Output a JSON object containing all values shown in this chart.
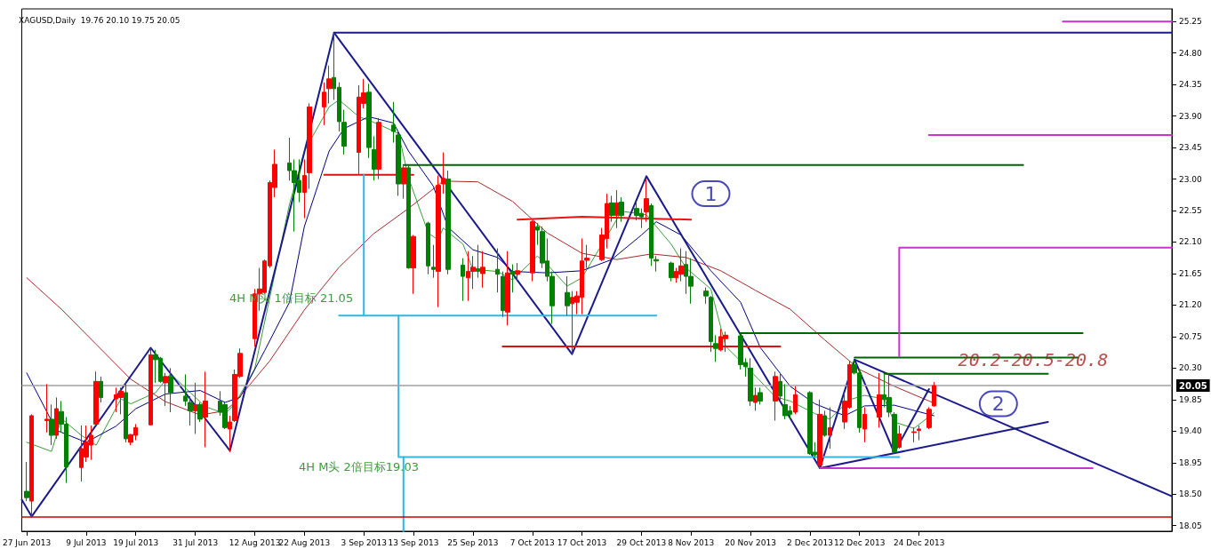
{
  "chart_data": {
    "type": "candlestick",
    "title": "XAGUSD,Daily  19.76 20.10 19.75 20.05",
    "xlim": [
      "2013-06-26",
      "2014-02-13"
    ],
    "xticks": [
      {
        "value": "2013-06-27",
        "label": "27 Jun 2013"
      },
      {
        "value": "2013-07-09",
        "label": "9 Jul 2013"
      },
      {
        "value": "2013-07-19",
        "label": "19 Jul 2013"
      },
      {
        "value": "2013-07-31",
        "label": "31 Jul 2013"
      },
      {
        "value": "2013-08-12",
        "label": "12 Aug 2013"
      },
      {
        "value": "2013-08-22",
        "label": "22 Aug 2013"
      },
      {
        "value": "2013-09-03",
        "label": "3 Sep 2013"
      },
      {
        "value": "2013-09-13",
        "label": "13 Sep 2013"
      },
      {
        "value": "2013-09-25",
        "label": "25 Sep 2013"
      },
      {
        "value": "2013-10-07",
        "label": "7 Oct 2013"
      },
      {
        "value": "2013-10-17",
        "label": "17 Oct 2013"
      },
      {
        "value": "2013-10-29",
        "label": "29 Oct 2013"
      },
      {
        "value": "2013-11-08",
        "label": "8 Nov 2013"
      },
      {
        "value": "2013-11-20",
        "label": "20 Nov 2013"
      },
      {
        "value": "2013-12-02",
        "label": "2 Dec 2013"
      },
      {
        "value": "2013-12-12",
        "label": "12 Dec 2013"
      },
      {
        "value": "2013-12-24",
        "label": "24 Dec 2013"
      }
    ],
    "ylim": [
      17.97,
      25.43
    ],
    "yticks": [
      25.25,
      {
        "value": 24.8,
        "label": "24.80"
      },
      24.35,
      {
        "value": 23.9,
        "label": "23.90"
      },
      23.45,
      {
        "value": 23,
        "label": "23.00"
      },
      22.55,
      {
        "value": 22.1,
        "label": "22.10"
      },
      21.65,
      {
        "value": 21.2,
        "label": "21.20"
      },
      20.75,
      {
        "value": 20.3,
        "label": "20.30"
      },
      19.85,
      {
        "value": 19.4,
        "label": "19.40"
      },
      18.95,
      {
        "value": 18.5,
        "label": "18.50"
      },
      18.05
    ],
    "x": [
      "2013-06-27",
      "2013-06-28",
      "2013-07-01",
      "2013-07-02",
      "2013-07-03",
      "2013-07-04",
      "2013-07-05",
      "2013-07-08",
      "2013-07-09",
      "2013-07-10",
      "2013-07-11",
      "2013-07-12",
      "2013-07-15",
      "2013-07-16",
      "2013-07-17",
      "2013-07-18",
      "2013-07-19",
      "2013-07-22",
      "2013-07-23",
      "2013-07-24",
      "2013-07-25",
      "2013-07-26",
      "2013-07-29",
      "2013-07-30",
      "2013-07-31",
      "2013-08-01",
      "2013-08-02",
      "2013-08-05",
      "2013-08-06",
      "2013-08-07",
      "2013-08-08",
      "2013-08-09",
      "2013-08-12",
      "2013-08-13",
      "2013-08-14",
      "2013-08-15",
      "2013-08-16",
      "2013-08-19",
      "2013-08-20",
      "2013-08-21",
      "2013-08-22",
      "2013-08-23",
      "2013-08-26",
      "2013-08-27",
      "2013-08-28",
      "2013-08-29",
      "2013-08-30",
      "2013-09-02",
      "2013-09-03",
      "2013-09-04",
      "2013-09-05",
      "2013-09-06",
      "2013-09-09",
      "2013-09-10",
      "2013-09-11",
      "2013-09-12",
      "2013-09-13",
      "2013-09-16",
      "2013-09-17",
      "2013-09-18",
      "2013-09-19",
      "2013-09-20",
      "2013-09-23",
      "2013-09-24",
      "2013-09-25",
      "2013-09-26",
      "2013-09-27",
      "2013-09-30",
      "2013-10-01",
      "2013-10-02",
      "2013-10-03",
      "2013-10-04",
      "2013-10-07",
      "2013-10-08",
      "2013-10-09",
      "2013-10-10",
      "2013-10-11",
      "2013-10-14",
      "2013-10-15",
      "2013-10-16",
      "2013-10-17",
      "2013-10-18",
      "2013-10-21",
      "2013-10-22",
      "2013-10-23",
      "2013-10-24",
      "2013-10-25",
      "2013-10-28",
      "2013-10-29",
      "2013-10-30",
      "2013-10-31",
      "2013-11-01",
      "2013-11-04",
      "2013-11-05",
      "2013-11-06",
      "2013-11-07",
      "2013-11-08",
      "2013-11-11",
      "2013-11-12",
      "2013-11-13",
      "2013-11-14",
      "2013-11-15",
      "2013-11-18",
      "2013-11-19",
      "2013-11-20",
      "2013-11-21",
      "2013-11-22",
      "2013-11-25",
      "2013-11-26",
      "2013-11-27",
      "2013-11-28",
      "2013-11-29",
      "2013-12-02",
      "2013-12-03",
      "2013-12-04",
      "2013-12-05",
      "2013-12-06",
      "2013-12-09",
      "2013-12-10",
      "2013-12-11",
      "2013-12-12",
      "2013-12-13",
      "2013-12-16",
      "2013-12-17",
      "2013-12-18",
      "2013-12-19",
      "2013-12-20",
      "2013-12-23",
      "2013-12-24",
      "2013-12-26",
      "2013-12-27"
    ],
    "ohlc": [
      [
        18.54,
        18.96,
        18.4,
        18.45
      ],
      [
        18.4,
        19.64,
        18.16,
        19.62
      ],
      [
        19.55,
        20.07,
        19.38,
        19.57
      ],
      [
        19.57,
        19.78,
        19.2,
        19.34
      ],
      [
        19.34,
        19.88,
        19.29,
        19.72
      ],
      [
        19.68,
        19.83,
        19.38,
        19.5
      ],
      [
        19.5,
        19.6,
        18.66,
        18.89
      ],
      [
        18.88,
        19.48,
        18.68,
        19.15
      ],
      [
        19.03,
        19.48,
        18.96,
        19.24
      ],
      [
        19.2,
        19.48,
        18.99,
        19.34
      ],
      [
        19.5,
        20.25,
        19.48,
        20.11
      ],
      [
        20.11,
        20.18,
        19.81,
        19.88
      ],
      [
        19.86,
        20.02,
        19.67,
        19.92
      ],
      [
        19.88,
        20.02,
        19.64,
        19.97
      ],
      [
        19.95,
        20.09,
        19.24,
        19.29
      ],
      [
        19.24,
        19.36,
        19.2,
        19.35
      ],
      [
        19.34,
        19.5,
        19.27,
        19.45
      ],
      [
        19.49,
        20.58,
        19.48,
        20.49
      ],
      [
        20.49,
        20.56,
        20.09,
        20.42
      ],
      [
        20.44,
        20.46,
        20.09,
        20.11
      ],
      [
        20.09,
        20.23,
        19.76,
        20.18
      ],
      [
        20.18,
        20.3,
        19.67,
        19.95
      ],
      [
        19.9,
        20.21,
        19.76,
        19.83
      ],
      [
        19.81,
        19.9,
        19.48,
        19.69
      ],
      [
        19.69,
        20.09,
        19.36,
        19.78
      ],
      [
        19.78,
        19.81,
        19.53,
        19.57
      ],
      [
        19.6,
        20.25,
        19.17,
        19.83
      ],
      [
        19.83,
        19.97,
        19.62,
        19.67
      ],
      [
        19.78,
        19.81,
        19.43,
        19.45
      ],
      [
        19.43,
        19.62,
        19.1,
        19.53
      ],
      [
        19.55,
        20.28,
        19.53,
        20.21
      ],
      [
        20.18,
        20.58,
        20.16,
        20.51
      ],
      [
        20.72,
        21.43,
        20.61,
        21.36
      ],
      [
        21.36,
        21.73,
        21.12,
        21.43
      ],
      [
        21.38,
        21.85,
        21.36,
        21.83
      ],
      [
        21.76,
        22.98,
        21.73,
        22.95
      ],
      [
        22.88,
        23.42,
        22.74,
        23.21
      ],
      [
        23.23,
        23.59,
        22.98,
        23.12
      ],
      [
        23.12,
        23.28,
        22.25,
        22.95
      ],
      [
        22.98,
        23.28,
        22.67,
        22.81
      ],
      [
        22.81,
        23.28,
        22.44,
        23.05
      ],
      [
        23.09,
        24.08,
        22.86,
        24.03
      ],
      [
        24.03,
        24.38,
        23.77,
        24.24
      ],
      [
        24.29,
        24.62,
        24.08,
        24.43
      ],
      [
        24.45,
        25.09,
        24.13,
        24.29
      ],
      [
        24.31,
        24.38,
        23.68,
        23.82
      ],
      [
        23.81,
        23.99,
        23.35,
        23.47
      ],
      [
        23.38,
        24.34,
        23.07,
        24.17
      ],
      [
        24.08,
        24.43,
        24.01,
        24.23
      ],
      [
        24.24,
        24.36,
        23.3,
        23.45
      ],
      [
        23.42,
        23.61,
        22.98,
        23.14
      ],
      [
        23.14,
        23.87,
        23.0,
        23.81
      ],
      [
        23.77,
        24.1,
        23.52,
        23.68
      ],
      [
        23.63,
        23.7,
        22.76,
        22.93
      ],
      [
        22.93,
        23.19,
        22.72,
        23.16
      ],
      [
        23.16,
        23.19,
        21.72,
        21.73
      ],
      [
        21.73,
        22.2,
        21.36,
        22.18
      ],
      [
        22.37,
        22.39,
        21.64,
        21.76
      ],
      [
        21.74,
        22.06,
        21.59,
        21.71
      ],
      [
        21.68,
        23.05,
        21.17,
        22.91
      ],
      [
        22.93,
        23.38,
        22.79,
        23.01
      ],
      [
        23.0,
        23.12,
        21.64,
        21.71
      ],
      [
        21.77,
        21.87,
        21.26,
        21.61
      ],
      [
        21.59,
        21.97,
        21.26,
        21.68
      ],
      [
        21.68,
        21.9,
        21.43,
        21.74
      ],
      [
        21.72,
        22.06,
        21.59,
        21.68
      ],
      [
        21.65,
        21.97,
        21.45,
        21.74
      ],
      [
        21.71,
        22.01,
        21.38,
        21.64
      ],
      [
        21.61,
        21.68,
        21.03,
        21.12
      ],
      [
        21.1,
        21.97,
        20.91,
        21.66
      ],
      [
        21.68,
        21.78,
        21.38,
        21.64
      ],
      [
        21.64,
        21.8,
        21.54,
        21.69
      ],
      [
        21.66,
        22.41,
        21.54,
        22.39
      ],
      [
        22.32,
        22.37,
        22.06,
        22.27
      ],
      [
        22.25,
        22.32,
        21.73,
        21.8
      ],
      [
        21.83,
        22.15,
        21.54,
        21.61
      ],
      [
        21.61,
        21.68,
        20.93,
        21.19
      ],
      [
        21.38,
        21.61,
        21.05,
        21.19
      ],
      [
        21.22,
        21.4,
        20.49,
        21.31
      ],
      [
        21.24,
        21.4,
        21.07,
        21.33
      ],
      [
        21.31,
        22.15,
        21.07,
        21.83
      ],
      [
        21.84,
        22.06,
        21.73,
        21.87
      ],
      [
        21.85,
        22.3,
        21.83,
        22.2
      ],
      [
        22.15,
        22.79,
        22.01,
        22.65
      ],
      [
        22.66,
        22.76,
        22.39,
        22.48
      ],
      [
        22.48,
        22.84,
        22.3,
        22.66
      ],
      [
        22.67,
        22.74,
        22.39,
        22.48
      ],
      [
        22.58,
        22.67,
        22.41,
        22.48
      ],
      [
        22.51,
        22.58,
        22.3,
        22.46
      ],
      [
        22.53,
        23.0,
        22.39,
        22.72
      ],
      [
        22.62,
        22.65,
        21.76,
        21.87
      ],
      [
        21.85,
        21.9,
        21.68,
        21.83
      ],
      [
        21.8,
        21.82,
        21.54,
        21.59
      ],
      [
        21.59,
        21.73,
        21.52,
        21.68
      ],
      [
        21.64,
        22.01,
        21.54,
        21.76
      ],
      [
        21.78,
        21.97,
        21.36,
        21.61
      ],
      [
        21.61,
        21.87,
        21.22,
        21.47
      ],
      [
        21.4,
        21.45,
        21.22,
        21.33
      ],
      [
        21.31,
        21.33,
        20.53,
        20.68
      ],
      [
        20.65,
        20.77,
        20.39,
        20.58
      ],
      [
        20.56,
        20.86,
        20.54,
        20.75
      ],
      [
        20.72,
        20.82,
        20.53,
        20.77
      ],
      [
        20.76,
        20.79,
        20.28,
        20.35
      ],
      [
        20.38,
        20.44,
        20.18,
        20.32
      ],
      [
        20.3,
        20.44,
        19.76,
        19.83
      ],
      [
        19.81,
        20.02,
        19.69,
        19.91
      ],
      [
        19.95,
        20.02,
        19.78,
        19.83
      ],
      [
        19.83,
        20.25,
        19.55,
        20.18
      ],
      [
        20.11,
        20.23,
        19.83,
        19.9
      ],
      [
        19.78,
        20.07,
        19.57,
        19.62
      ],
      [
        19.69,
        19.76,
        19.57,
        19.64
      ],
      [
        19.67,
        20.04,
        19.64,
        19.92
      ],
      [
        19.95,
        19.97,
        19.06,
        19.08
      ],
      [
        19.1,
        19.24,
        19.03,
        19.06
      ],
      [
        18.91,
        19.85,
        18.87,
        19.64
      ],
      [
        19.62,
        19.69,
        19.32,
        19.34
      ],
      [
        19.34,
        19.74,
        19.15,
        19.45
      ],
      [
        19.53,
        19.95,
        19.43,
        19.83
      ],
      [
        19.74,
        20.4,
        19.72,
        20.35
      ],
      [
        20.35,
        20.42,
        20.21,
        20.23
      ],
      [
        20.23,
        20.28,
        19.38,
        19.45
      ],
      [
        19.43,
        19.74,
        19.24,
        19.64
      ],
      [
        19.6,
        20.23,
        19.45,
        19.92
      ],
      [
        19.92,
        20.21,
        19.74,
        19.85
      ],
      [
        19.88,
        20.21,
        19.6,
        19.67
      ],
      [
        19.64,
        19.67,
        19.08,
        19.1
      ],
      [
        19.17,
        19.48,
        19.15,
        19.36
      ],
      [
        19.38,
        19.45,
        19.24,
        19.39
      ],
      [
        19.41,
        19.48,
        19.27,
        19.43
      ],
      [
        19.45,
        19.74,
        19.43,
        19.71
      ],
      [
        19.76,
        20.1,
        19.75,
        20.05
      ]
    ],
    "colors": [
      "#008000",
      "#ff0000",
      "#ff0000",
      "#008000",
      "#ff0000",
      "#008000",
      "#008000",
      "#ff0000",
      "#ff0000",
      "#ff0000",
      "#ff0000",
      "#008000",
      "#ff0000",
      "#ff0000",
      "#008000",
      "#ff0000",
      "#ff0000",
      "#ff0000",
      "#008000",
      "#008000",
      "#ff0000",
      "#008000",
      "#008000",
      "#008000",
      "#ff0000",
      "#008000",
      "#ff0000",
      "#008000",
      "#008000",
      "#ff0000",
      "#ff0000",
      "#ff0000",
      "#ff0000",
      "#ff0000",
      "#ff0000",
      "#ff0000",
      "#ff0000",
      "#008000",
      "#008000",
      "#008000",
      "#ff0000",
      "#ff0000",
      "#ff0000",
      "#ff0000",
      "#008000",
      "#008000",
      "#008000",
      "#ff0000",
      "#ff0000",
      "#008000",
      "#008000",
      "#ff0000",
      "#008000",
      "#008000",
      "#ff0000",
      "#008000",
      "#ff0000",
      "#008000",
      "#008000",
      "#ff0000",
      "#ff0000",
      "#008000",
      "#008000",
      "#ff0000",
      "#ff0000",
      "#008000",
      "#ff0000",
      "#008000",
      "#008000",
      "#ff0000",
      "#008000",
      "#ff0000",
      "#ff0000",
      "#008000",
      "#008000",
      "#008000",
      "#008000",
      "#008000",
      "#ff0000",
      "#ff0000",
      "#ff0000",
      "#ff0000",
      "#ff0000",
      "#ff0000",
      "#008000",
      "#ff0000",
      "#008000",
      "#008000",
      "#008000",
      "#ff0000",
      "#008000",
      "#008000",
      "#008000",
      "#ff0000",
      "#ff0000",
      "#008000",
      "#008000",
      "#008000",
      "#008000",
      "#008000",
      "#ff0000",
      "#ff0000",
      "#008000",
      "#008000",
      "#008000",
      "#ff0000",
      "#008000",
      "#ff0000",
      "#008000",
      "#008000",
      "#008000",
      "#ff0000",
      "#008000",
      "#008000",
      "#ff0000",
      "#008000",
      "#ff0000",
      "#ff0000",
      "#ff0000",
      "#008000",
      "#008000",
      "#ff0000",
      "#ff0000",
      "#008000",
      "#008000",
      "#008000",
      "#ff0000",
      "#ff0000",
      "#ff0000",
      "#ff0000",
      "#ff0000"
    ],
    "series": [
      {
        "type": "line",
        "color": "#3a9d3a",
        "x": [
          "2013-06-27",
          "2013-07-02",
          "2013-07-04",
          "2013-07-08",
          "2013-07-11",
          "2013-07-16",
          "2013-07-18",
          "2013-07-23",
          "2013-07-26",
          "2013-07-30",
          "2013-08-02",
          "2013-08-06",
          "2013-08-08",
          "2013-08-12",
          "2013-08-15",
          "2013-08-19",
          "2013-08-22",
          "2013-08-27",
          "2013-08-29",
          "2013-09-02",
          "2013-09-04",
          "2013-09-06",
          "2013-09-10",
          "2013-09-12",
          "2013-09-16",
          "2013-09-18",
          "2013-09-19",
          "2013-09-23",
          "2013-09-25",
          "2013-09-30",
          "2013-10-03",
          "2013-10-08",
          "2013-10-10",
          "2013-10-14",
          "2013-10-17",
          "2013-10-21",
          "2013-10-23",
          "2013-10-25",
          "2013-10-30",
          "2013-11-04",
          "2013-11-07",
          "2013-11-12",
          "2013-11-15",
          "2013-11-20",
          "2013-11-25",
          "2013-11-28",
          "2013-12-03",
          "2013-12-06",
          "2013-12-10",
          "2013-12-13",
          "2013-12-17",
          "2013-12-19",
          "2013-12-23",
          "2013-12-27"
        ],
        "values": [
          19.24,
          19.11,
          19.58,
          19.34,
          19.2,
          19.86,
          19.79,
          19.95,
          20.22,
          19.95,
          19.75,
          19.65,
          19.79,
          20.29,
          null,
          22.64,
          23.4,
          24.03,
          24.13,
          23.89,
          23.84,
          23.78,
          23.65,
          23.02,
          22.23,
          22.13,
          22.3,
          22.07,
          21.71,
          21.68,
          21.56,
          21.9,
          21.78,
          21.47,
          21.59,
          null,
          22.3,
          22.54,
          22.49,
          22.07,
          21.73,
          21.43,
          20.61,
          20.26,
          19.89,
          19.83,
          19.65,
          19.57,
          19.85,
          19.91,
          19.86,
          19.53,
          19.44,
          19.66
        ]
      },
      {
        "type": "line",
        "color": "#000080",
        "x": [
          "2013-06-27",
          "2013-07-03",
          "2013-07-09",
          "2013-07-15",
          "2013-07-19",
          "2013-07-25",
          "2013-08-01",
          "2013-08-06",
          "2013-08-09",
          "2013-08-14",
          "2013-08-19",
          "2013-08-22",
          "2013-08-27",
          "2013-08-30",
          "2013-09-04",
          "2013-09-09",
          "2013-09-12",
          "2013-09-17",
          "2013-09-20",
          "2013-09-25",
          "2013-09-30",
          "2013-10-03",
          "2013-10-10",
          "2013-10-17",
          "2013-10-23",
          "2013-10-29",
          "2013-11-01",
          "2013-11-06",
          "2013-11-12",
          "2013-11-18",
          "2013-11-22",
          "2013-11-28",
          "2013-12-03",
          "2013-12-09",
          "2013-12-13",
          "2013-12-19",
          "2013-12-27"
        ],
        "values": [
          20.23,
          19.41,
          19.24,
          19.47,
          19.72,
          19.93,
          19.98,
          19.81,
          19.88,
          20.55,
          21.24,
          22.32,
          23.4,
          23.72,
          23.89,
          23.8,
          23.4,
          22.9,
          22.31,
          21.99,
          21.88,
          21.68,
          21.66,
          21.69,
          21.85,
          22.2,
          22.39,
          22.2,
          21.69,
          21.24,
          20.59,
          20.04,
          19.79,
          19.62,
          19.76,
          19.77,
          19.62
        ]
      },
      {
        "type": "line",
        "color": "#a52a2a",
        "x": [
          "2013-06-27",
          "2013-07-04",
          "2013-07-11",
          "2013-07-18",
          "2013-07-25",
          "2013-08-01",
          "2013-08-06",
          "2013-08-08",
          "2013-08-15",
          "2013-08-22",
          "2013-08-29",
          "2013-09-05",
          "2013-09-12",
          "2013-09-19",
          "2013-09-26",
          "2013-10-03",
          "2013-10-10",
          "2013-10-17",
          "2013-10-24",
          "2013-10-31",
          "2013-11-07",
          "2013-11-14",
          "2013-11-21",
          "2013-11-28",
          "2013-12-05",
          "2013-12-12",
          "2013-12-19",
          "2013-12-27"
        ],
        "values": [
          21.59,
          21.14,
          20.64,
          20.14,
          19.82,
          19.63,
          19.69,
          19.81,
          20.4,
          21.13,
          21.74,
          22.22,
          22.58,
          22.97,
          22.96,
          22.68,
          22.23,
          21.94,
          21.85,
          21.93,
          21.88,
          21.69,
          21.41,
          21.14,
          20.7,
          20.28,
          20.04,
          19.8
        ]
      },
      {
        "type": "line",
        "color": "#1a1a8c",
        "x": [
          "2013-06-26",
          "2013-06-28",
          "2013-07-22",
          "2013-08-07",
          "2013-08-28",
          "2013-10-15",
          "2013-10-30",
          "2013-12-04",
          "2013-12-11",
          "2013-12-19",
          "2013-12-26"
        ],
        "values": [
          18.42,
          18.18,
          20.59,
          19.12,
          25.09,
          20.5,
          23.04,
          18.87,
          20.42,
          19.09,
          20.0
        ]
      },
      {
        "type": "line",
        "color": "#1a1a8c",
        "x": [
          "2013-12-11",
          "2014-02-13"
        ],
        "values": [
          20.42,
          18.47
        ]
      },
      {
        "type": "line",
        "color": "#1a1a8c",
        "x": [
          "2013-12-04",
          "2014-01-19"
        ],
        "values": [
          18.87,
          19.53
        ]
      },
      {
        "type": "line",
        "color": "#1a1a8c",
        "x": [
          "2013-08-28",
          "2014-02-13"
        ],
        "values": [
          25.09,
          25.09
        ]
      },
      {
        "type": "line",
        "color": "#ee1111",
        "x": [
          "2013-10-04",
          "2013-10-17",
          "2013-11-08"
        ],
        "values": [
          22.42,
          22.46,
          22.42
        ]
      },
      {
        "type": "line",
        "color": "#dd1111",
        "x": [
          "2013-08-26",
          "2013-09-13"
        ],
        "values": [
          23.06,
          23.06
        ]
      },
      {
        "type": "line",
        "color": "#dd1111",
        "x": [
          "2013-10-01",
          "2013-11-26"
        ],
        "values": [
          20.61,
          20.61
        ]
      },
      {
        "type": "line",
        "color": "#006400",
        "x": [
          "2013-09-11",
          "2014-01-14"
        ],
        "values": [
          23.2,
          23.2
        ]
      },
      {
        "type": "line",
        "color": "#006400",
        "x": [
          "2013-11-18",
          "2014-01-26"
        ],
        "values": [
          20.8,
          20.8
        ]
      },
      {
        "type": "line",
        "color": "#006400",
        "x": [
          "2013-12-11",
          "2014-01-25"
        ],
        "values": [
          20.45,
          20.45
        ]
      },
      {
        "type": "line",
        "color": "#006400",
        "x": [
          "2013-12-17",
          "2014-01-19"
        ],
        "values": [
          20.22,
          20.22
        ]
      },
      {
        "type": "line",
        "color": "#cc33cc",
        "x": [
          "2014-01-22",
          "2014-02-13"
        ],
        "values": [
          25.25,
          25.25
        ]
      },
      {
        "type": "line",
        "color": "#cc33cc",
        "x": [
          "2013-12-26",
          "2014-02-13"
        ],
        "values": [
          23.63,
          23.63
        ]
      },
      {
        "type": "line",
        "color": "#cc33cc",
        "x": [
          "2013-12-20",
          "2013-12-20",
          "2014-02-13"
        ],
        "values": [
          20.47,
          22.02,
          22.02
        ]
      },
      {
        "type": "line",
        "color": "#cc33cc",
        "x": [
          "2013-12-04",
          "2014-01-28"
        ],
        "values": [
          18.87,
          18.87
        ]
      },
      {
        "type": "line",
        "color": "#33b5e5",
        "x": [
          "2013-09-03",
          "2013-09-03",
          "2013-08-29",
          "2013-11-01"
        ],
        "values": [
          23.06,
          21.05,
          21.05,
          21.05
        ]
      },
      {
        "type": "line",
        "color": "#33b5e5",
        "x": [
          "2013-09-10",
          "2013-09-10",
          "2013-12-20"
        ],
        "values": [
          21.05,
          19.03,
          19.03
        ]
      },
      {
        "type": "line",
        "color": "#33b5e5",
        "x": [
          "2013-09-11",
          "2013-09-11"
        ],
        "values": [
          19.03,
          17.97
        ]
      }
    ],
    "ref_lines": [
      {
        "axis": "y",
        "value": 18.18,
        "color": "#cc0000"
      },
      {
        "axis": "y",
        "value": 20.05,
        "label": "20.05",
        "color": "#a0a0a0"
      }
    ],
    "annotations": [
      "4H M头 1倍目标 21.05",
      "4H M头 2倍目标19.03",
      {
        "text": "1",
        "x": "2013-11-12",
        "y": 22.79
      },
      {
        "text": "2",
        "x": "2014-01-09",
        "y": 19.79
      },
      {
        "text": "20.2-20.5-20.8",
        "x": "2014-01-16",
        "y": 20.42
      }
    ]
  }
}
